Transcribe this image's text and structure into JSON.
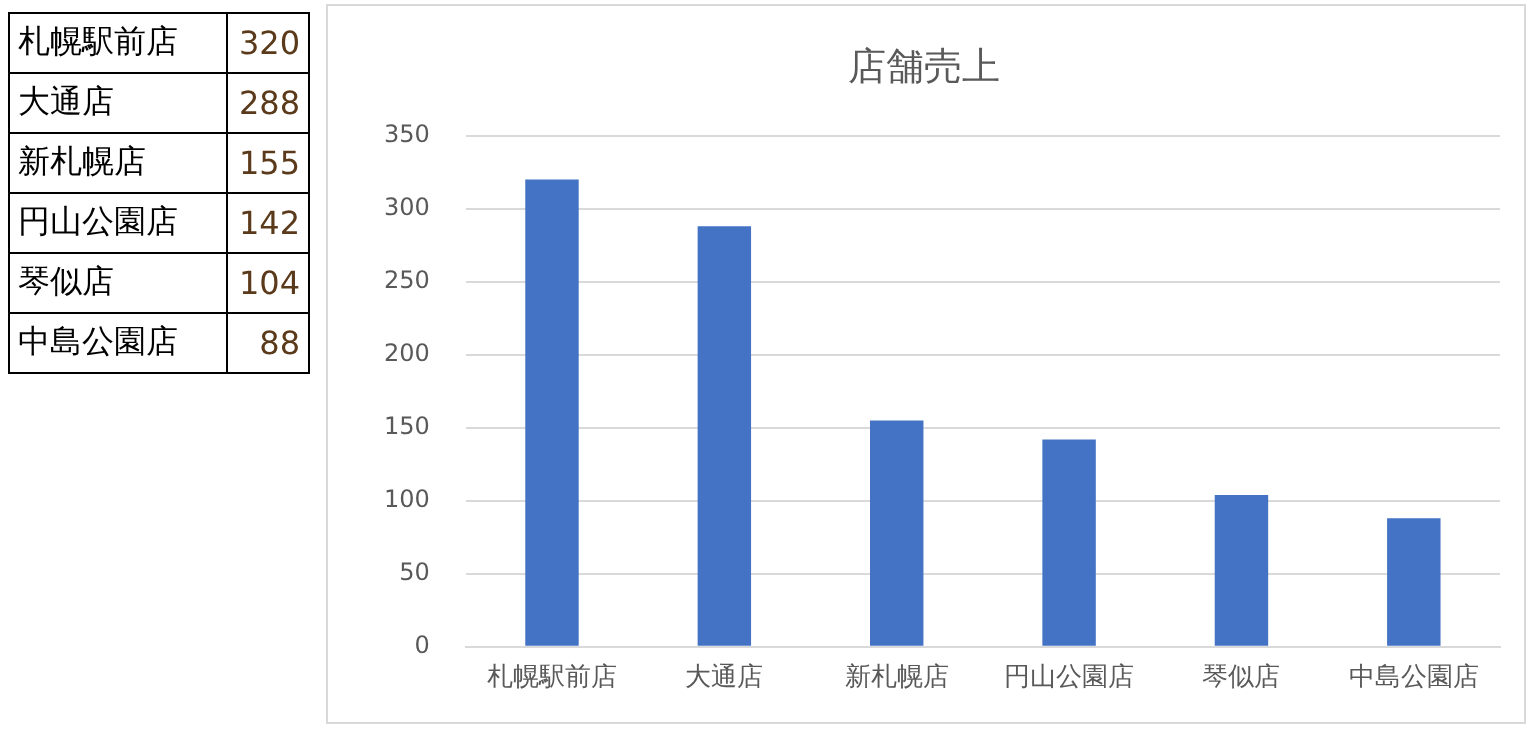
{
  "chart_data": [
    {
      "type": "other",
      "annotations": [
        "札幌駅前店",
        "320",
        "大通店",
        "288",
        "新札幌店",
        "155",
        "円山公園店",
        "142",
        "琴似店",
        "104",
        "中島公園店",
        "88"
      ]
    },
    {
      "type": "bar",
      "title": "店舗売上",
      "categories": [
        "札幌駅前店",
        "大通店",
        "新札幌店",
        "円山公園店",
        "琴似店",
        "中島公園店"
      ],
      "values": [
        320,
        288,
        155,
        142,
        104,
        88
      ],
      "color": "#4472c4",
      "ylim": [
        0,
        350
      ],
      "yticks": [
        0,
        50,
        100,
        150,
        200,
        250,
        300,
        350
      ],
      "grid": "y"
    }
  ]
}
